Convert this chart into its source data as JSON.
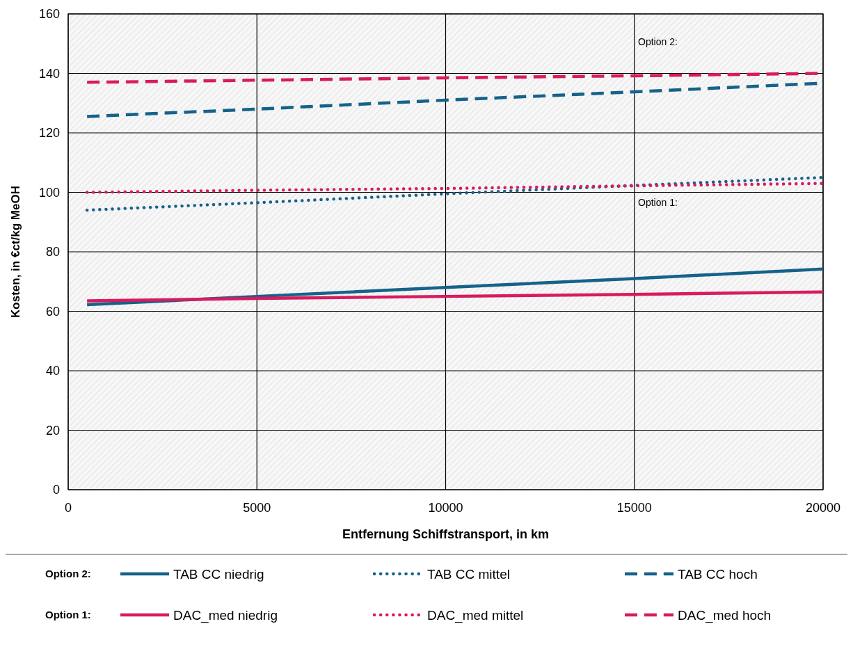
{
  "chart_data": {
    "type": "line",
    "xlabel": "Entfernung Schiffstransport, in km",
    "ylabel": "Kosten, in €ct/kg MeOH",
    "xlim": [
      0,
      20000
    ],
    "xticks": [
      0,
      5000,
      10000,
      15000,
      20000
    ],
    "ylim": [
      0,
      160
    ],
    "yticks": [
      0,
      20,
      40,
      60,
      80,
      100,
      120,
      140,
      160
    ],
    "grid": true,
    "legend": "bottom",
    "annotations": [
      "Option 2:",
      "Option 1:",
      "Option 2:",
      "Option 1:"
    ],
    "x": [
      500,
      5000,
      10000,
      15000,
      20000
    ],
    "series": [
      {
        "name": "TAB CC niedrig",
        "color": "#15628a",
        "line_style": "solid",
        "values": [
          62.2,
          65,
          68,
          71,
          74.2
        ]
      },
      {
        "name": "TAB CC mittel",
        "color": "#15628a",
        "line_style": "dotted",
        "values": [
          94,
          96.5,
          99.5,
          102.3,
          105
        ]
      },
      {
        "name": "TAB CC hoch",
        "color": "#15628a",
        "line_style": "dashed",
        "values": [
          125.5,
          128,
          131,
          133.8,
          136.7
        ]
      },
      {
        "name": "DAC_med niedrig",
        "color": "#d81b60",
        "line_style": "solid",
        "values": [
          63.5,
          64.3,
          65,
          65.7,
          66.5
        ]
      },
      {
        "name": "DAC_med mittel",
        "color": "#d81b60",
        "line_style": "dotted",
        "values": [
          100,
          100.7,
          101.3,
          102.2,
          103
        ]
      },
      {
        "name": "DAC_med hoch",
        "color": "#d81b60",
        "line_style": "dashed",
        "values": [
          137,
          137.7,
          138.5,
          139.2,
          140
        ]
      }
    ]
  }
}
